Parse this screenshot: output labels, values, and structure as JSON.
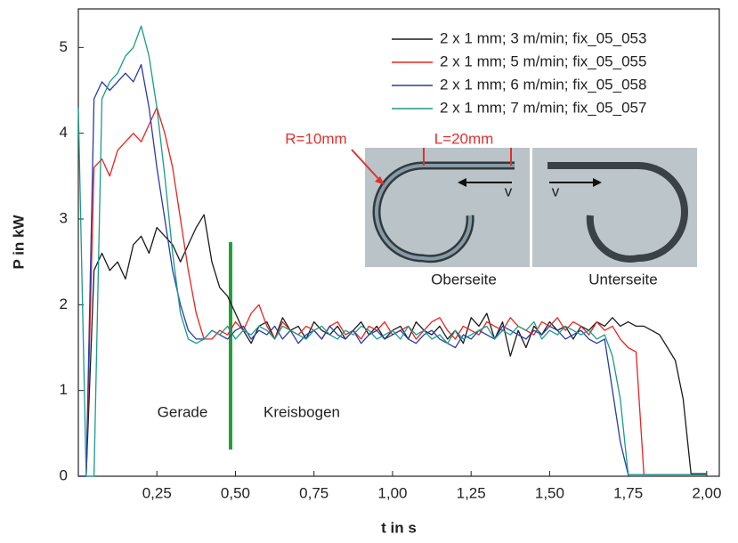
{
  "chart_data": {
    "type": "line",
    "xlabel": "t in s",
    "ylabel": "P in kW",
    "annotations": [
      "Gerade",
      "Kreisbogen",
      "R=10mm",
      "L=20mm",
      "v",
      "v",
      "Oberseite",
      "Unterseite"
    ],
    "x": [
      0,
      0.025,
      0.05,
      0.075,
      0.1,
      0.125,
      0.15,
      0.175,
      0.2,
      0.225,
      0.25,
      0.275,
      0.3,
      0.325,
      0.35,
      0.375,
      0.4,
      0.425,
      0.45,
      0.475,
      0.5,
      0.525,
      0.55,
      0.575,
      0.6,
      0.625,
      0.65,
      0.675,
      0.7,
      0.725,
      0.75,
      0.775,
      0.8,
      0.825,
      0.85,
      0.875,
      0.9,
      0.925,
      0.95,
      0.975,
      1.0,
      1.025,
      1.05,
      1.075,
      1.1,
      1.125,
      1.15,
      1.175,
      1.2,
      1.225,
      1.25,
      1.275,
      1.3,
      1.325,
      1.35,
      1.375,
      1.4,
      1.425,
      1.45,
      1.475,
      1.5,
      1.525,
      1.55,
      1.575,
      1.6,
      1.625,
      1.65,
      1.675,
      1.7,
      1.725,
      1.75,
      1.775,
      1.8,
      1.825,
      1.85,
      1.875,
      1.9,
      1.925,
      1.95,
      1.975,
      2.0
    ],
    "series": [
      {
        "name": "2 x 1 mm; 3 m/min; fix_05_053",
        "color": "#1a1a1a",
        "values": [
          0,
          0,
          2.4,
          2.6,
          2.4,
          2.5,
          2.3,
          2.7,
          2.8,
          2.6,
          2.9,
          2.8,
          2.7,
          2.5,
          2.7,
          2.9,
          3.05,
          2.5,
          2.2,
          2.1,
          1.9,
          1.7,
          1.55,
          1.75,
          1.8,
          1.6,
          1.85,
          1.7,
          1.75,
          1.6,
          1.8,
          1.7,
          1.65,
          1.75,
          1.6,
          1.7,
          1.8,
          1.65,
          1.75,
          1.6,
          1.7,
          1.75,
          1.6,
          1.8,
          1.7,
          1.65,
          1.75,
          1.6,
          1.7,
          1.55,
          1.85,
          1.75,
          1.9,
          1.6,
          1.8,
          1.4,
          1.7,
          1.5,
          1.75,
          1.65,
          1.8,
          1.7,
          1.75,
          1.6,
          1.75,
          1.7,
          1.8,
          1.75,
          1.85,
          1.75,
          1.8,
          1.75,
          1.75,
          1.7,
          1.65,
          1.5,
          1.35,
          0.9,
          0.03,
          0.03,
          0.03
        ]
      },
      {
        "name": "2 x 1 mm; 5 m/min; fix_05_055",
        "color": "#e8231f",
        "values": [
          0,
          0,
          3.6,
          3.7,
          3.5,
          3.8,
          3.9,
          4.0,
          3.9,
          4.1,
          4.3,
          4.0,
          3.6,
          3.0,
          2.4,
          1.9,
          1.6,
          1.6,
          1.7,
          1.65,
          1.8,
          1.7,
          1.9,
          2.0,
          1.75,
          1.6,
          1.8,
          1.7,
          1.65,
          1.75,
          1.7,
          1.6,
          1.75,
          1.8,
          1.65,
          1.7,
          1.6,
          1.75,
          1.7,
          1.8,
          1.65,
          1.7,
          1.75,
          1.6,
          1.7,
          1.8,
          1.85,
          1.7,
          1.6,
          1.75,
          1.7,
          1.65,
          1.8,
          1.75,
          1.7,
          1.85,
          1.75,
          1.7,
          1.65,
          1.8,
          1.75,
          1.85,
          1.7,
          1.8,
          1.75,
          1.65,
          1.8,
          1.7,
          1.75,
          1.6,
          1.5,
          1.45,
          0.02,
          0.02,
          0.02,
          0.02,
          0.02,
          0.02,
          0.02,
          0.02,
          0.02
        ]
      },
      {
        "name": "2 x 1 mm; 6 m/min; fix_05_058",
        "color": "#2a3aa8",
        "values": [
          0,
          0,
          4.4,
          4.6,
          4.5,
          4.6,
          4.7,
          4.6,
          4.8,
          4.3,
          3.6,
          3.0,
          2.4,
          2.0,
          1.7,
          1.6,
          1.6,
          1.7,
          1.65,
          1.6,
          1.7,
          1.75,
          1.6,
          1.7,
          1.65,
          1.75,
          1.6,
          1.7,
          1.55,
          1.65,
          1.7,
          1.6,
          1.75,
          1.65,
          1.6,
          1.7,
          1.55,
          1.65,
          1.7,
          1.6,
          1.65,
          1.7,
          1.6,
          1.55,
          1.65,
          1.7,
          1.6,
          1.55,
          1.5,
          1.65,
          1.6,
          1.7,
          1.65,
          1.6,
          1.75,
          1.7,
          1.65,
          1.6,
          1.7,
          1.65,
          1.75,
          1.7,
          1.6,
          1.65,
          1.7,
          1.6,
          1.55,
          1.6,
          1.0,
          0.4,
          0.02,
          0.02,
          0.02,
          0.02,
          0.02,
          0.02,
          0.02,
          0.02,
          0.02,
          0.02,
          0.02
        ]
      },
      {
        "name": "2 x 1 mm; 7 m/min; fix_05_057",
        "color": "#1a9a8a",
        "values": [
          4.3,
          0,
          0,
          4.4,
          4.6,
          4.7,
          4.9,
          5.0,
          5.25,
          4.9,
          4.3,
          3.5,
          2.6,
          1.9,
          1.6,
          1.55,
          1.6,
          1.7,
          1.65,
          1.75,
          1.6,
          1.7,
          1.65,
          1.75,
          1.7,
          1.6,
          1.75,
          1.7,
          1.65,
          1.6,
          1.7,
          1.75,
          1.65,
          1.6,
          1.7,
          1.65,
          1.75,
          1.7,
          1.6,
          1.65,
          1.7,
          1.6,
          1.75,
          1.65,
          1.7,
          1.6,
          1.65,
          1.55,
          1.7,
          1.6,
          1.65,
          1.7,
          1.75,
          1.6,
          1.7,
          1.65,
          1.75,
          1.7,
          1.8,
          1.6,
          1.7,
          1.65,
          1.75,
          1.7,
          1.65,
          1.7,
          1.6,
          1.65,
          1.4,
          0.9,
          0.02,
          0.02,
          0.02,
          0.02,
          0.02,
          0.02,
          0.02,
          0.02,
          0.02,
          0.02,
          0.02
        ]
      }
    ],
    "xlim": [
      0,
      2.04
    ],
    "ylim": [
      0,
      5.45
    ],
    "xticks": [
      {
        "value": 0.25,
        "label": "0,25"
      },
      {
        "value": 0.5,
        "label": "0,50"
      },
      {
        "value": 0.75,
        "label": "0,75"
      },
      {
        "value": 1.0,
        "label": "1,00"
      },
      {
        "value": 1.25,
        "label": "1,25"
      },
      {
        "value": 1.5,
        "label": "1,50"
      },
      {
        "value": 1.75,
        "label": "1,75"
      },
      {
        "value": 2.0,
        "label": "2,00"
      }
    ],
    "yticks": [
      0,
      1,
      2,
      3,
      4,
      5
    ],
    "legend": "upper right",
    "grid": false
  }
}
